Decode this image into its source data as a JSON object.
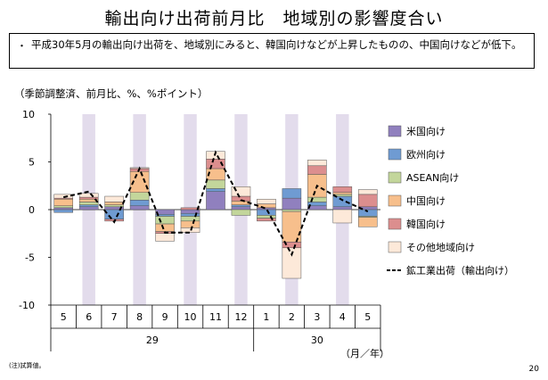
{
  "title": "輸出向け出荷前月比　地域別の影響度合い",
  "bullet": {
    "mark": "・",
    "text": "平成30年5月の輸出向け出荷を、地域別にみると、韓国向けなどが上昇したものの、中国向けなどが低下。"
  },
  "units_label": "（季節調整済、前月比、%、%ポイント）",
  "note": "(注)試算値。",
  "page_number": "20",
  "chart_data": {
    "type": "bar",
    "stacked": true,
    "categories": [
      "5",
      "6",
      "7",
      "8",
      "9",
      "10",
      "11",
      "12",
      "1",
      "2",
      "3",
      "4",
      "5"
    ],
    "year_labels": [
      {
        "label": "29",
        "from": 0,
        "to": 7
      },
      {
        "label": "30",
        "from": 8,
        "to": 12
      }
    ],
    "xlabel": "（月／年）",
    "ylim": [
      -10,
      10
    ],
    "yticks": [
      10,
      5,
      0,
      -5,
      -10
    ],
    "shaded_columns": [
      1,
      3,
      5,
      7,
      9,
      11
    ],
    "shade_color": "#e3dcec",
    "series": [
      {
        "name": "米国向け",
        "color": "#9080be",
        "values": [
          0.2,
          0.3,
          0.3,
          0.4,
          -0.5,
          -0.4,
          1.9,
          0.3,
          0.2,
          1.2,
          0.4,
          0.3,
          0.3
        ]
      },
      {
        "name": "欧州向け",
        "color": "#6f9bd2",
        "values": [
          -0.3,
          0.2,
          -1.0,
          0.6,
          -0.2,
          -0.3,
          0.3,
          0.2,
          -0.6,
          1.0,
          0.4,
          1.1,
          -0.7
        ]
      },
      {
        "name": "ASEAN向け",
        "color": "#c3d69b",
        "values": [
          0.2,
          0.3,
          0.2,
          0.8,
          -0.8,
          -0.5,
          0.9,
          -0.6,
          -0.3,
          -0.2,
          0.5,
          0.2,
          -0.1
        ]
      },
      {
        "name": "中国向け",
        "color": "#f7bf8c",
        "values": [
          0.7,
          0.3,
          0.3,
          2.2,
          -0.8,
          -0.7,
          1.2,
          0.4,
          0.4,
          -3.2,
          2.4,
          0.2,
          -1.0
        ]
      },
      {
        "name": "韓国向け",
        "color": "#dc8e8e",
        "values": [
          0.1,
          0.2,
          -0.2,
          0.3,
          -0.2,
          0.2,
          1.0,
          0.5,
          -0.3,
          -0.6,
          0.9,
          0.6,
          1.3
        ]
      },
      {
        "name": "その他地域向け",
        "color": "#fde9d9",
        "values": [
          0.4,
          0.4,
          0.6,
          0.1,
          -0.8,
          -0.5,
          0.8,
          1.0,
          0.5,
          -3.2,
          0.6,
          -1.4,
          0.5
        ]
      }
    ],
    "line_series": {
      "name": "鉱工業出荷（輸出向け）",
      "color": "#000000",
      "dash": "dashed",
      "values": [
        1.3,
        1.9,
        -1.3,
        4.3,
        -2.4,
        -2.4,
        6.0,
        1.0,
        0.1,
        -4.7,
        2.5,
        1.0,
        -0.2
      ]
    },
    "legend_position": "right"
  }
}
